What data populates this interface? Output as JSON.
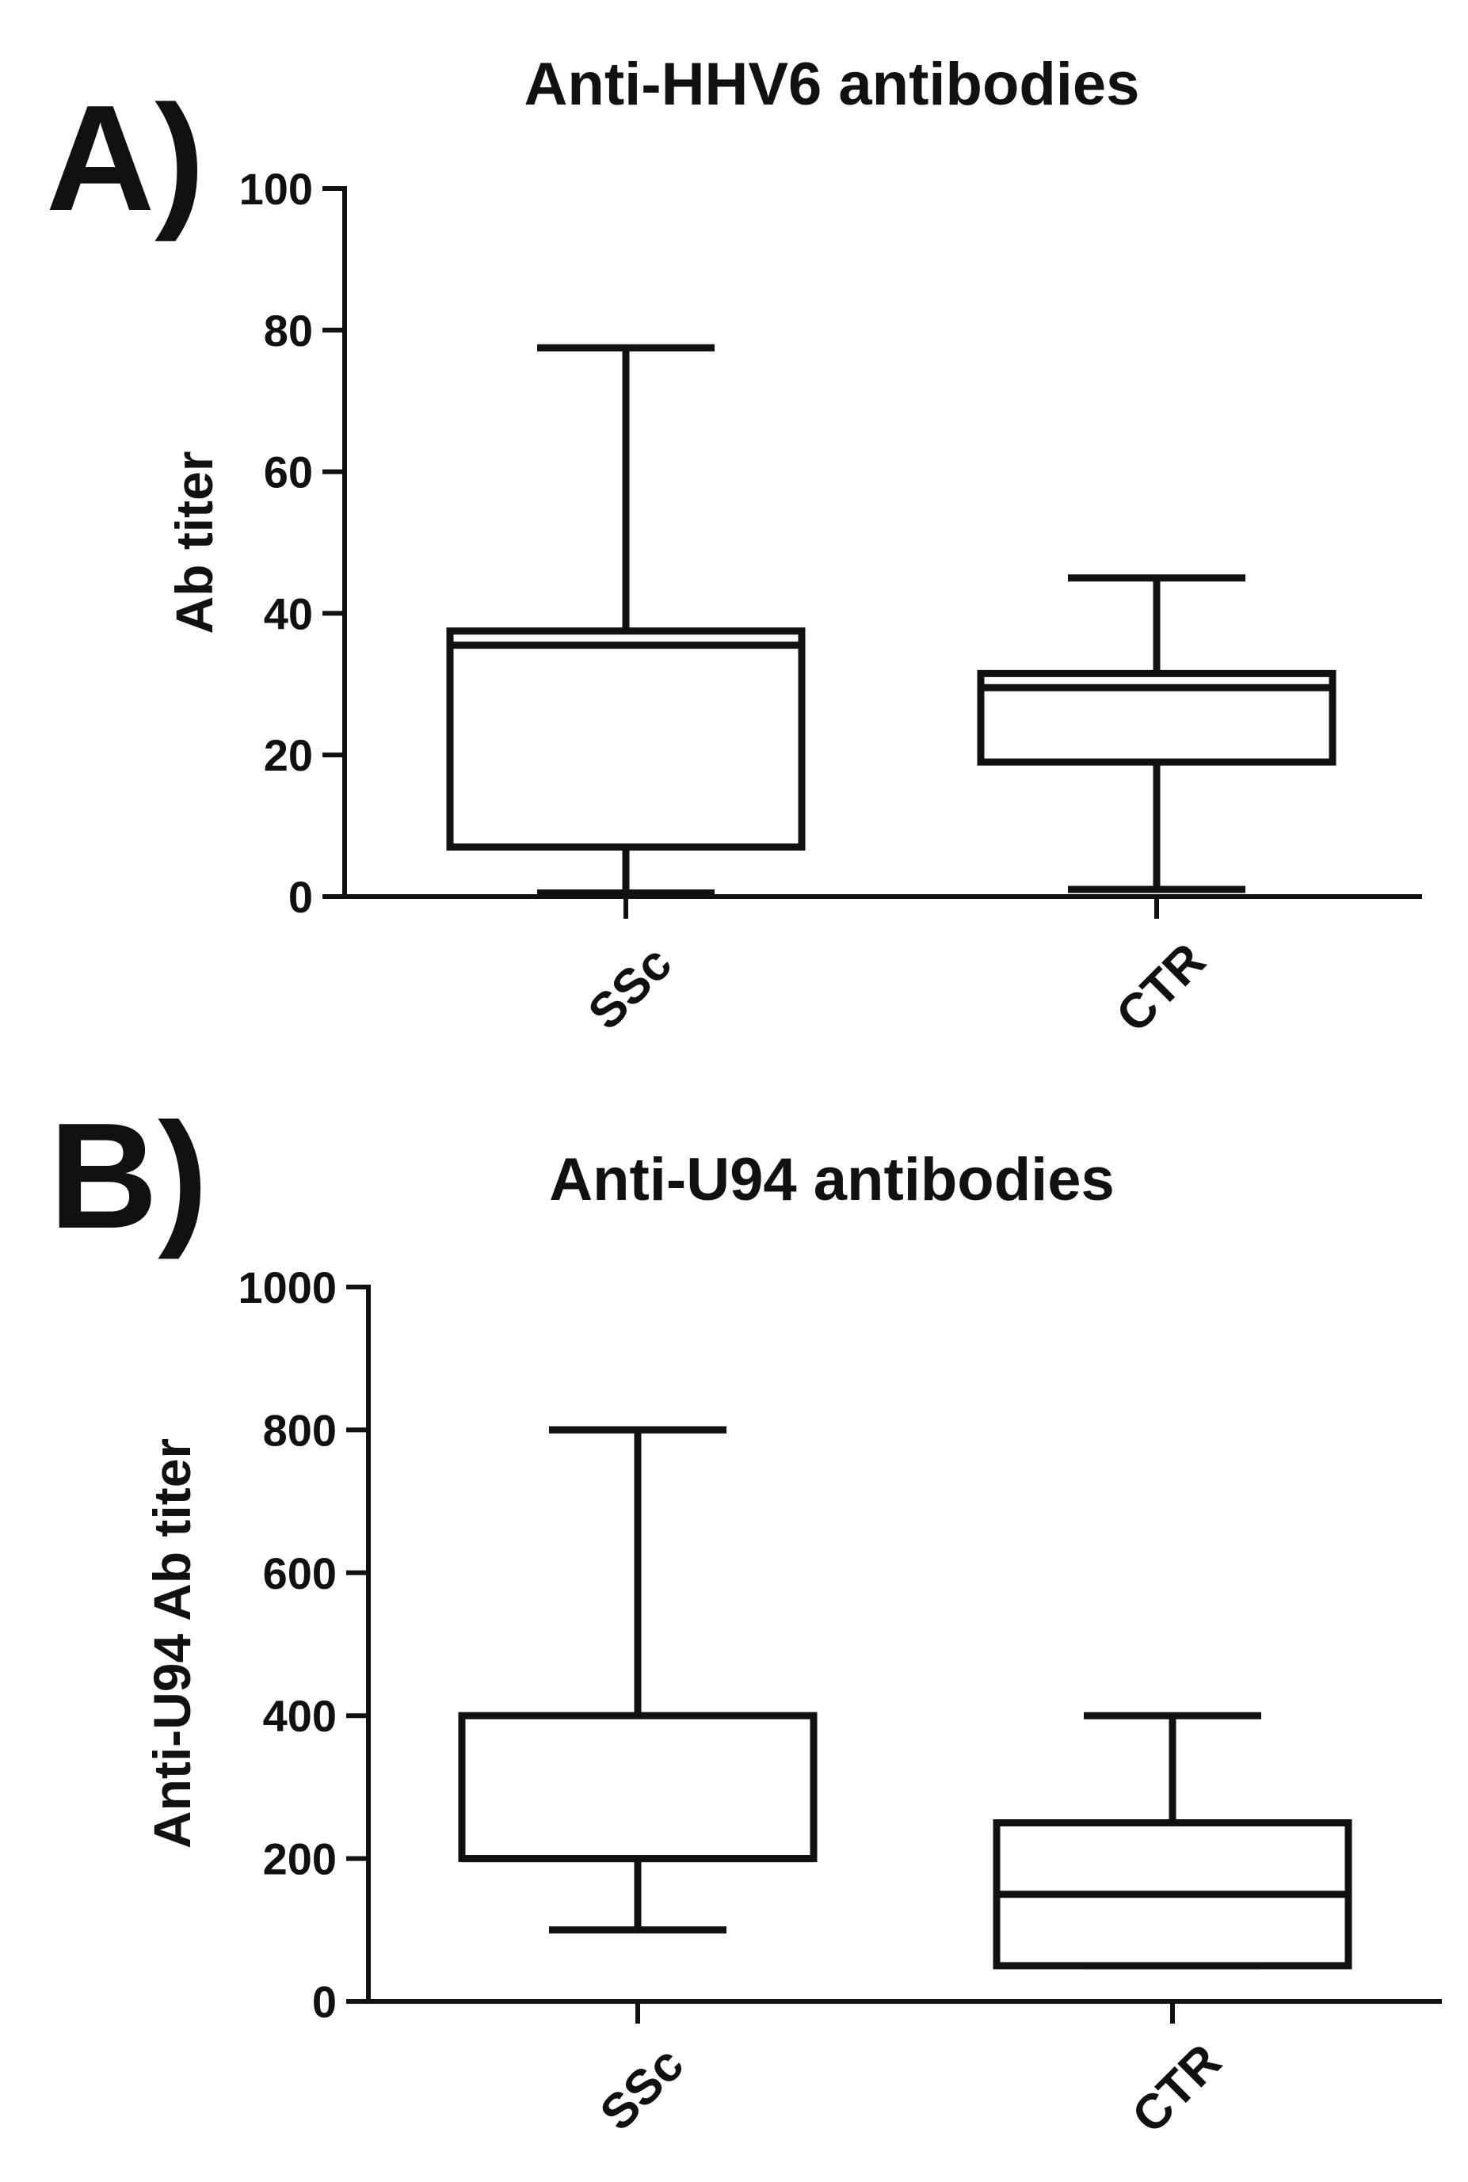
{
  "panels": {
    "a": {
      "letter": "A)"
    },
    "b": {
      "letter": "B)"
    }
  },
  "chart_data": [
    {
      "type": "box",
      "title": "Anti-HHV6 antibodies",
      "xlabel": "",
      "ylabel": "Ab titer",
      "ylim": [
        0,
        100
      ],
      "yticks": [
        0,
        20,
        40,
        60,
        80,
        100
      ],
      "categories": [
        "SSc",
        "CTR"
      ],
      "boxes": [
        {
          "category": "SSc",
          "min": 0.5,
          "q1": 7,
          "median": 35.5,
          "q3": 37.5,
          "max": 77.5
        },
        {
          "category": "CTR",
          "min": 1,
          "q1": 19,
          "median": 29.5,
          "q3": 31.5,
          "max": 45
        }
      ],
      "grid": false
    },
    {
      "type": "box",
      "title": "Anti-U94 antibodies",
      "xlabel": "",
      "ylabel": "Anti-U94 Ab titer",
      "ylim": [
        0,
        1000
      ],
      "yticks": [
        0,
        200,
        400,
        600,
        800,
        1000
      ],
      "categories": [
        "SSc",
        "CTR"
      ],
      "boxes": [
        {
          "category": "SSc",
          "min": 100,
          "q1": 200,
          "median": 200,
          "q3": 400,
          "max": 800
        },
        {
          "category": "CTR",
          "min": 50,
          "q1": 50,
          "median": 150,
          "q3": 250,
          "max": 400
        }
      ],
      "grid": false
    }
  ]
}
